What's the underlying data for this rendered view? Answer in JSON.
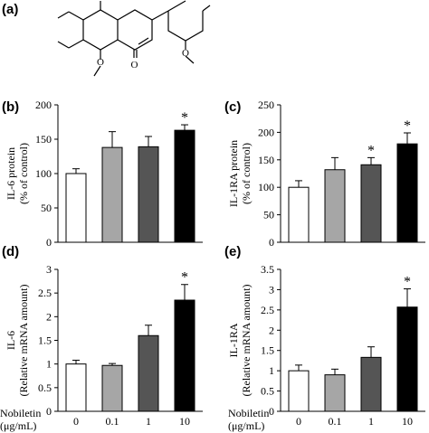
{
  "panel_labels": [
    "(a)",
    "(b)",
    "(c)",
    "(d)",
    "(e)"
  ],
  "structure_labels": {
    "carbonyl": "O",
    "methoxy": "O"
  },
  "x_axis": {
    "label_line1": "Nobiletin",
    "label_line2": "(μg/mL)",
    "ticks": [
      "0",
      "0.1",
      "1",
      "10"
    ]
  },
  "colors": {
    "dose_0": "#ffffff",
    "dose_0_1": "#a6a6a6",
    "dose_1": "#555555",
    "dose_10": "#000000"
  },
  "chart_data": [
    {
      "panel": "(b)",
      "type": "bar",
      "categories": [
        "0",
        "0.1",
        "1",
        "10"
      ],
      "values": [
        100,
        138,
        139,
        163
      ],
      "errors": [
        7,
        23,
        15,
        8
      ],
      "significance": [
        "",
        "",
        "",
        "*"
      ],
      "ylabel_line1": "IL-6 protein",
      "ylabel_line2": "(% of control)",
      "ylim": [
        0,
        200
      ],
      "yticks": [
        0,
        50,
        100,
        150,
        200
      ]
    },
    {
      "panel": "(c)",
      "type": "bar",
      "categories": [
        "0",
        "0.1",
        "1",
        "10"
      ],
      "values": [
        100,
        132,
        141,
        179
      ],
      "errors": [
        12,
        22,
        13,
        20
      ],
      "significance": [
        "",
        "",
        "*",
        "*"
      ],
      "ylabel_line1": "IL-1RA protein",
      "ylabel_line2": "(% of control)",
      "ylim": [
        0,
        250
      ],
      "yticks": [
        0,
        50,
        100,
        150,
        200,
        250
      ]
    },
    {
      "panel": "(d)",
      "type": "bar",
      "categories": [
        "0",
        "0.1",
        "1",
        "10"
      ],
      "values": [
        1.0,
        0.97,
        1.6,
        2.35
      ],
      "errors": [
        0.08,
        0.04,
        0.22,
        0.33
      ],
      "significance": [
        "",
        "",
        "",
        "*"
      ],
      "ylabel_line1": "IL-6",
      "ylabel_line2": "(Relative mRNA amount)",
      "ylim": [
        0,
        3
      ],
      "yticks": [
        0,
        0.5,
        1,
        1.5,
        2,
        2.5,
        3
      ]
    },
    {
      "panel": "(e)",
      "type": "bar",
      "categories": [
        "0",
        "0.1",
        "1",
        "10"
      ],
      "values": [
        1.0,
        0.9,
        1.33,
        2.57
      ],
      "errors": [
        0.14,
        0.14,
        0.26,
        0.45
      ],
      "significance": [
        "",
        "",
        "",
        "*"
      ],
      "ylabel_line1": "IL-1RA",
      "ylabel_line2": "(Relative mRNA amount)",
      "ylim": [
        0,
        3.5
      ],
      "yticks": [
        0,
        0.5,
        1,
        1.5,
        2,
        2.5,
        3,
        3.5
      ]
    }
  ]
}
